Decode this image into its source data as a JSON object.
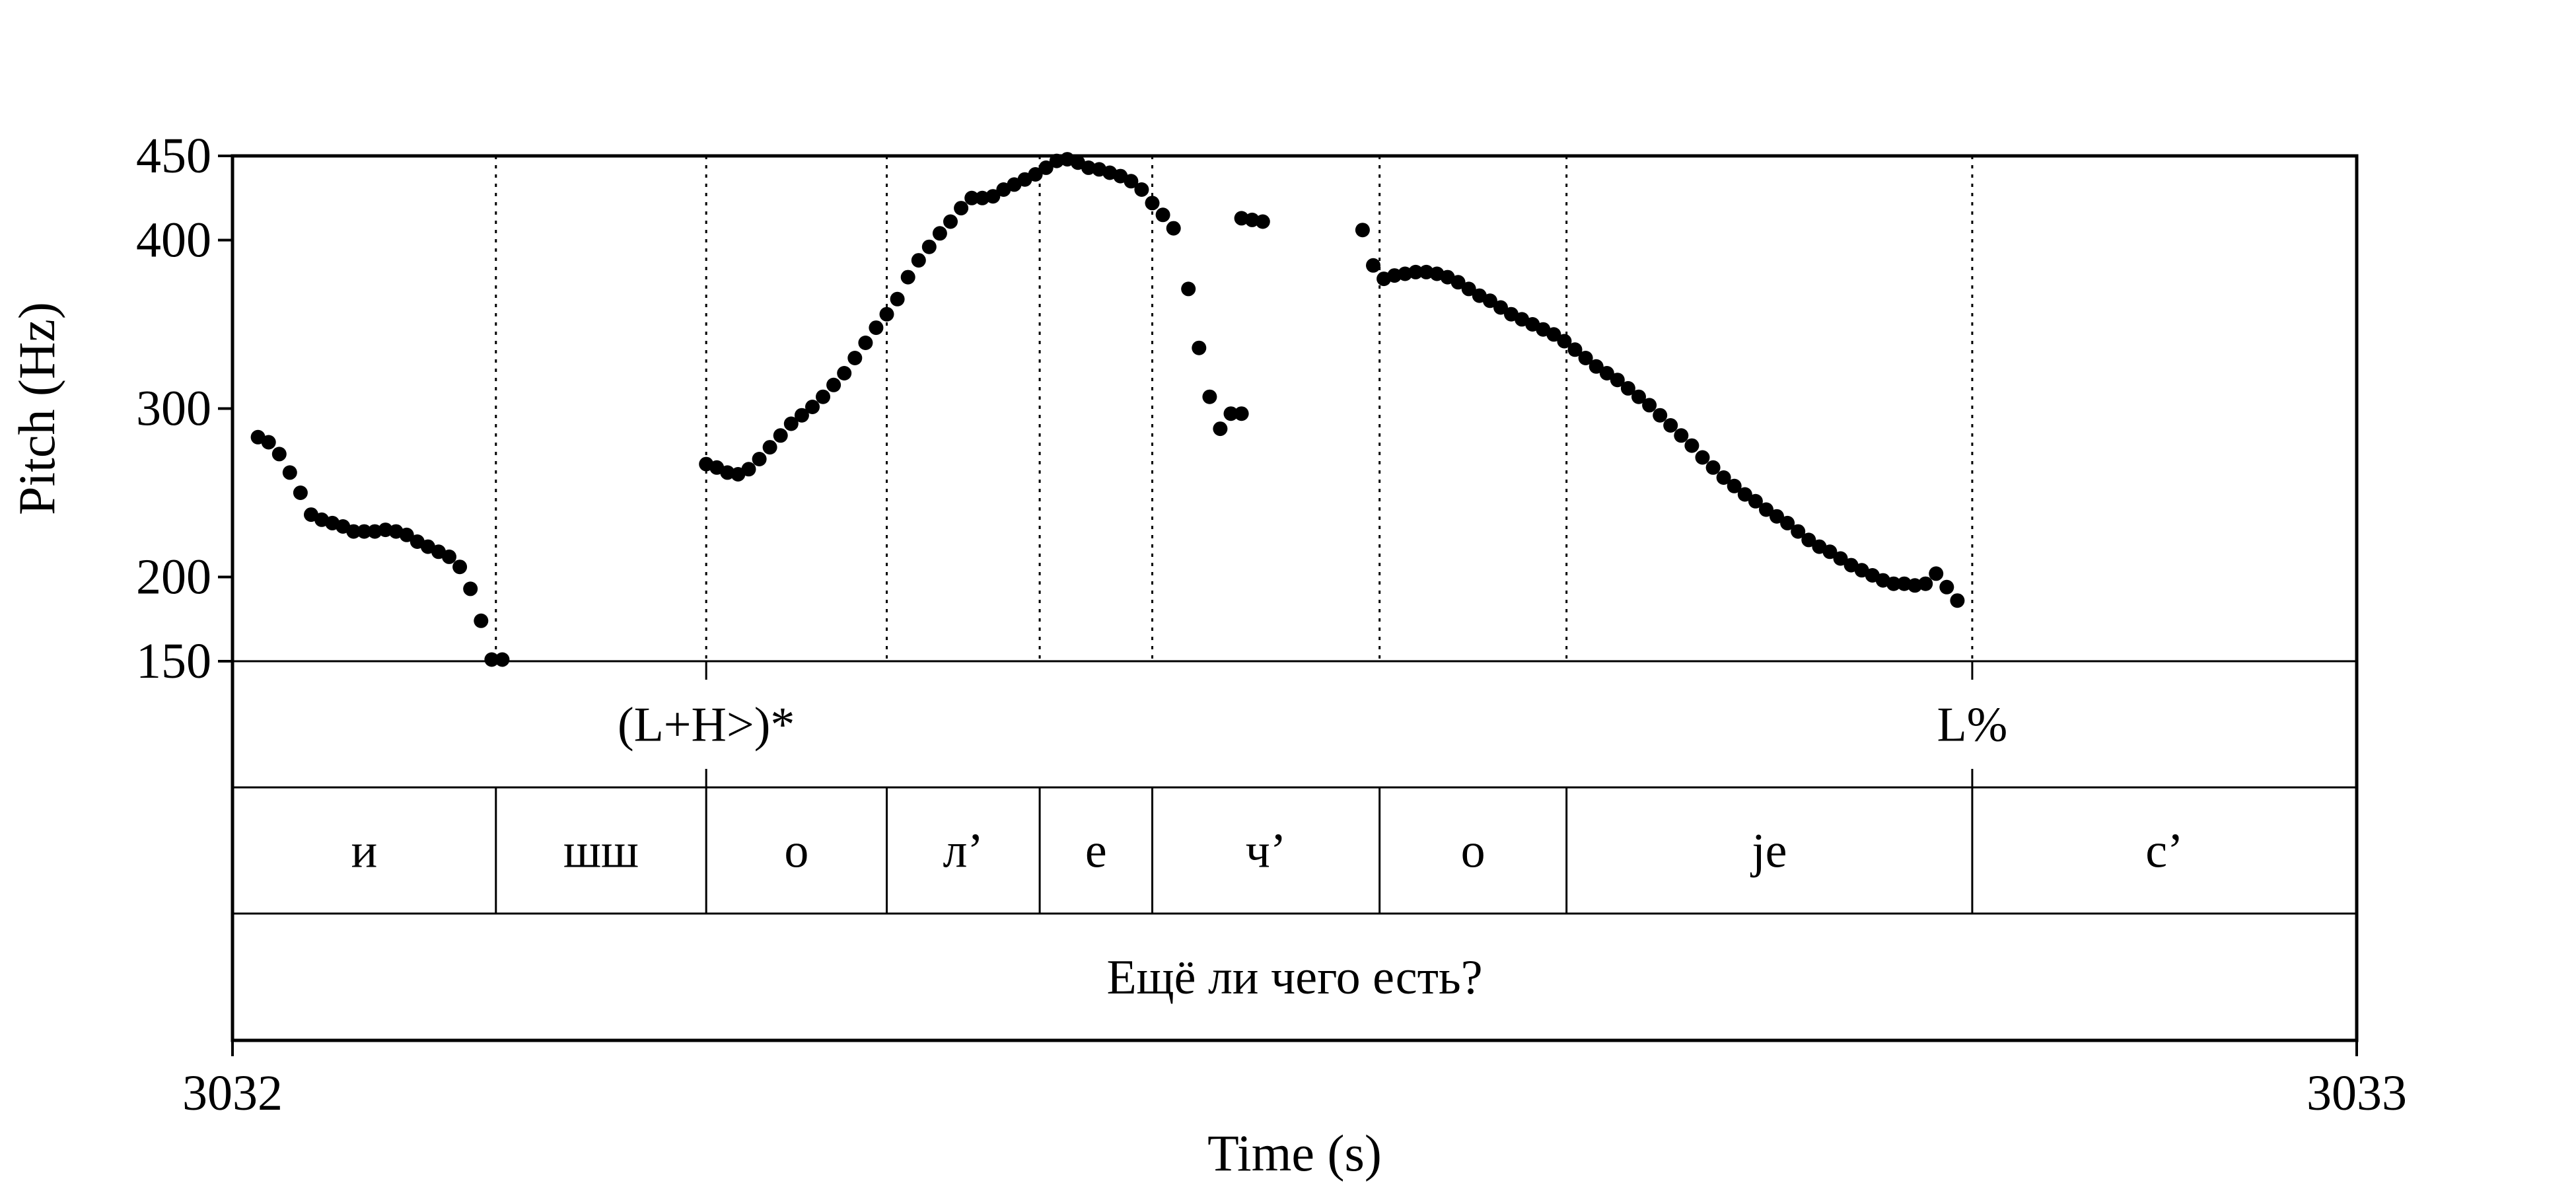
{
  "chart_data": {
    "type": "scatter",
    "x_axis": {
      "label": "Time (s)",
      "range": [
        3032,
        3033
      ],
      "ticks": [
        "3032",
        "3033"
      ]
    },
    "y_axis": {
      "label": "Pitch (Hz)",
      "range": [
        150,
        450
      ],
      "ticks": [
        150,
        200,
        300,
        400,
        450
      ],
      "tick_labels": [
        "150",
        "200",
        "300",
        "400",
        "450"
      ]
    },
    "marker_color": "#000000",
    "series": [
      {
        "points": [
          [
            3032.012,
            283
          ],
          [
            3032.017,
            280
          ],
          [
            3032.022,
            273
          ],
          [
            3032.027,
            262
          ],
          [
            3032.032,
            250
          ],
          [
            3032.037,
            237
          ],
          [
            3032.042,
            234
          ],
          [
            3032.047,
            232
          ],
          [
            3032.052,
            230
          ],
          [
            3032.057,
            227
          ],
          [
            3032.062,
            227
          ],
          [
            3032.067,
            227
          ],
          [
            3032.072,
            228
          ],
          [
            3032.077,
            227
          ],
          [
            3032.082,
            225
          ],
          [
            3032.087,
            221
          ],
          [
            3032.092,
            218
          ],
          [
            3032.097,
            215
          ],
          [
            3032.102,
            212
          ],
          [
            3032.107,
            206
          ],
          [
            3032.112,
            193
          ],
          [
            3032.117,
            174
          ],
          [
            3032.122,
            151
          ],
          [
            3032.127,
            151
          ],
          [
            3032.223,
            267
          ],
          [
            3032.228,
            265
          ],
          [
            3032.233,
            262
          ],
          [
            3032.238,
            261
          ],
          [
            3032.243,
            264
          ],
          [
            3032.248,
            270
          ],
          [
            3032.253,
            277
          ],
          [
            3032.258,
            284
          ],
          [
            3032.263,
            291
          ],
          [
            3032.268,
            296
          ],
          [
            3032.273,
            301
          ],
          [
            3032.278,
            307
          ],
          [
            3032.283,
            314
          ],
          [
            3032.288,
            321
          ],
          [
            3032.293,
            330
          ],
          [
            3032.298,
            339
          ],
          [
            3032.303,
            348
          ],
          [
            3032.308,
            356
          ],
          [
            3032.313,
            365
          ],
          [
            3032.318,
            378
          ],
          [
            3032.323,
            388
          ],
          [
            3032.328,
            396
          ],
          [
            3032.333,
            404
          ],
          [
            3032.338,
            411
          ],
          [
            3032.343,
            419
          ],
          [
            3032.348,
            425
          ],
          [
            3032.353,
            425
          ],
          [
            3032.358,
            426
          ],
          [
            3032.363,
            430
          ],
          [
            3032.368,
            433
          ],
          [
            3032.373,
            436
          ],
          [
            3032.378,
            439
          ],
          [
            3032.383,
            443
          ],
          [
            3032.388,
            447
          ],
          [
            3032.393,
            448
          ],
          [
            3032.398,
            446
          ],
          [
            3032.403,
            443
          ],
          [
            3032.408,
            442
          ],
          [
            3032.413,
            440
          ],
          [
            3032.418,
            438
          ],
          [
            3032.423,
            435
          ],
          [
            3032.428,
            430
          ],
          [
            3032.433,
            422
          ],
          [
            3032.438,
            415
          ],
          [
            3032.443,
            407
          ],
          [
            3032.45,
            371
          ],
          [
            3032.455,
            336
          ],
          [
            3032.46,
            307
          ],
          [
            3032.465,
            288
          ],
          [
            3032.47,
            297
          ],
          [
            3032.475,
            297
          ],
          [
            3032.475,
            413
          ],
          [
            3032.48,
            412
          ],
          [
            3032.485,
            411
          ],
          [
            3032.532,
            406
          ],
          [
            3032.537,
            385
          ],
          [
            3032.542,
            377
          ],
          [
            3032.547,
            379
          ],
          [
            3032.552,
            380
          ],
          [
            3032.557,
            381
          ],
          [
            3032.562,
            381
          ],
          [
            3032.567,
            380
          ],
          [
            3032.572,
            378
          ],
          [
            3032.577,
            375
          ],
          [
            3032.582,
            371
          ],
          [
            3032.587,
            367
          ],
          [
            3032.592,
            364
          ],
          [
            3032.597,
            360
          ],
          [
            3032.602,
            356
          ],
          [
            3032.607,
            353
          ],
          [
            3032.612,
            350
          ],
          [
            3032.617,
            347
          ],
          [
            3032.622,
            344
          ],
          [
            3032.627,
            340
          ],
          [
            3032.632,
            335
          ],
          [
            3032.637,
            330
          ],
          [
            3032.642,
            325
          ],
          [
            3032.647,
            321
          ],
          [
            3032.652,
            317
          ],
          [
            3032.657,
            312
          ],
          [
            3032.662,
            307
          ],
          [
            3032.667,
            302
          ],
          [
            3032.672,
            296
          ],
          [
            3032.677,
            290
          ],
          [
            3032.682,
            284
          ],
          [
            3032.687,
            278
          ],
          [
            3032.692,
            271
          ],
          [
            3032.697,
            265
          ],
          [
            3032.702,
            259
          ],
          [
            3032.707,
            254
          ],
          [
            3032.712,
            249
          ],
          [
            3032.717,
            245
          ],
          [
            3032.722,
            240
          ],
          [
            3032.727,
            236
          ],
          [
            3032.732,
            232
          ],
          [
            3032.737,
            227
          ],
          [
            3032.742,
            222
          ],
          [
            3032.747,
            218
          ],
          [
            3032.752,
            215
          ],
          [
            3032.757,
            211
          ],
          [
            3032.762,
            207
          ],
          [
            3032.767,
            204
          ],
          [
            3032.772,
            201
          ],
          [
            3032.777,
            198
          ],
          [
            3032.782,
            196
          ],
          [
            3032.787,
            196
          ],
          [
            3032.792,
            195
          ],
          [
            3032.797,
            196
          ],
          [
            3032.802,
            202
          ],
          [
            3032.807,
            194
          ],
          [
            3032.812,
            186
          ]
        ]
      }
    ],
    "tiers": [
      {
        "name": "tones",
        "boundaries": [
          3032.223,
          3032.819
        ],
        "labels": [
          {
            "text": "(L+H>)*",
            "time": 3032.223
          },
          {
            "text": "L%",
            "time": 3032.819
          }
        ]
      },
      {
        "name": "segments",
        "intervals": [
          {
            "text": "и",
            "start": 3032.0,
            "end": 3032.124
          },
          {
            "text": "шш",
            "start": 3032.124,
            "end": 3032.223
          },
          {
            "text": "o",
            "start": 3032.223,
            "end": 3032.308
          },
          {
            "text": "л’",
            "start": 3032.308,
            "end": 3032.38
          },
          {
            "text": "e",
            "start": 3032.38,
            "end": 3032.433
          },
          {
            "text": "ч’",
            "start": 3032.433,
            "end": 3032.54
          },
          {
            "text": "o",
            "start": 3032.54,
            "end": 3032.628
          },
          {
            "text": "je",
            "start": 3032.628,
            "end": 3032.819
          },
          {
            "text": "с’",
            "start": 3032.819,
            "end": 3033.0
          }
        ]
      },
      {
        "name": "utterance",
        "intervals": [
          {
            "text": "Ещё ли чего есть?",
            "start": 3032.0,
            "end": 3033.0
          }
        ]
      }
    ]
  }
}
